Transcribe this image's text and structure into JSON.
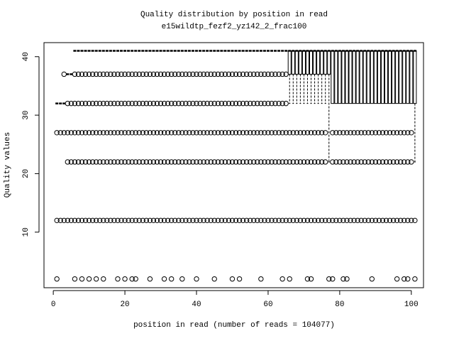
{
  "chart_data": {
    "type": "boxplot",
    "title": "Quality distribution by position in read",
    "subtitle": "e15wildtp_fezf2_yz142_2_frac100",
    "x_label": "position in read (number of reads = 104077)",
    "y_label": "Quality values",
    "xlim": [
      -2.6,
      103.4
    ],
    "ylim": [
      0.5,
      42.4
    ],
    "xticks": [
      0,
      20,
      40,
      60,
      80,
      100
    ],
    "yticks": [
      10,
      20,
      30,
      40
    ],
    "color": "#000000",
    "groups": [
      {
        "positions": [
          1,
          2
        ],
        "low": 32,
        "q1": 32,
        "median": 32,
        "q3": 32,
        "high": 32,
        "outliers": [
          27,
          12
        ]
      },
      {
        "positions": [
          3,
          3
        ],
        "low": 32,
        "q1": 32,
        "median": 32,
        "q3": 32,
        "high": 32,
        "outliers": [
          37,
          27,
          12
        ]
      },
      {
        "positions": [
          4,
          5
        ],
        "low": 37,
        "q1": 37,
        "median": 37,
        "q3": 37,
        "high": 37,
        "outliers": [
          32,
          27,
          22,
          12
        ]
      },
      {
        "positions": [
          6,
          65
        ],
        "low": 41,
        "q1": 41,
        "median": 41,
        "q3": 41,
        "high": 41,
        "outliers": [
          37,
          32,
          27,
          22,
          12
        ]
      },
      {
        "positions": [
          66,
          76
        ],
        "low": 32,
        "q1": 37,
        "median": 41,
        "q3": 41,
        "high": 41,
        "outliers": [
          27,
          22,
          12
        ]
      },
      {
        "positions": [
          77,
          77
        ],
        "low": 22,
        "q1": 37,
        "median": 41,
        "q3": 41,
        "high": 41,
        "outliers": [
          12
        ]
      },
      {
        "positions": [
          78,
          100
        ],
        "low": 32,
        "q1": 32,
        "median": 41,
        "q3": 41,
        "high": 41,
        "outliers": [
          27,
          22,
          12
        ]
      },
      {
        "positions": [
          101,
          101
        ],
        "low": 22,
        "q1": 32,
        "median": 41,
        "q3": 41,
        "high": 41,
        "outliers": [
          12
        ]
      }
    ],
    "scattered_outliers": {
      "value": 2,
      "x": [
        1,
        6,
        8,
        10,
        12,
        14,
        18,
        20,
        22,
        23,
        27,
        31,
        33,
        36,
        40,
        45,
        50,
        52,
        58,
        64,
        66,
        71,
        72,
        77,
        78,
        81,
        82,
        89,
        96,
        98,
        99,
        101
      ]
    }
  }
}
